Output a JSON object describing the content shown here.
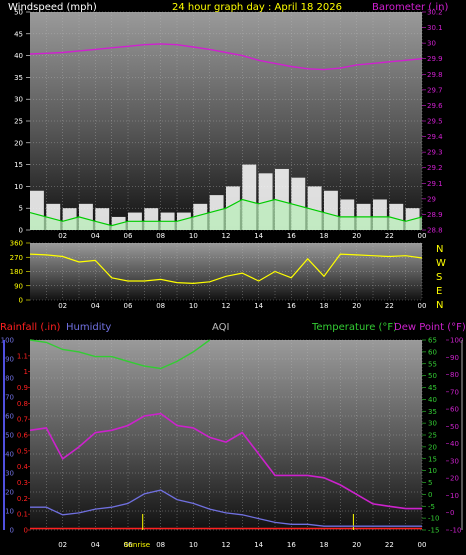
{
  "header": {
    "windspeed_label": "Windspeed (mph)",
    "title": "24 hour graph day : April 18 2026",
    "barometer_label": "Barometer (.in)"
  },
  "lower_header": {
    "rainfall_label": "Rainfall (.in)",
    "humidity_label": "Humidity",
    "aqi_label": "AQI",
    "temperature_label": "Temperature (°F)",
    "dewpoint_label": "Dew Point (°F)"
  },
  "compass": [
    "N",
    "W",
    "S",
    "E",
    "N"
  ],
  "sun": {
    "sunrise_label": "Sunrise"
  },
  "colors": {
    "wind_gust": "#ffffff",
    "wind_avg": "#00cc00",
    "barometer": "#d020d0",
    "direction": "#ffff00",
    "humidity": "#7070e0",
    "temperature": "#33cc33",
    "dewpoint": "#cc22cc",
    "rain": "#ff2020",
    "sun": "#ffff00"
  },
  "chart_data": [
    {
      "type": "area",
      "id": "wind_barometer",
      "x_ticks": [
        "02",
        "04",
        "06",
        "08",
        "10",
        "12",
        "14",
        "16",
        "18",
        "20",
        "22",
        "00"
      ],
      "y_left": {
        "label": "Windspeed (mph)",
        "range": [
          0,
          50
        ],
        "ticks": [
          "0",
          "5",
          "10",
          "15",
          "20",
          "25",
          "30",
          "35",
          "40",
          "45",
          "50"
        ]
      },
      "y_right": {
        "label": "Barometer (.in)",
        "range": [
          28.8,
          30.2
        ],
        "ticks": [
          "28.8",
          "28.9",
          "29",
          "29.1",
          "29.2",
          "29.3",
          "29.4",
          "29.5",
          "29.6",
          "29.7",
          "29.8",
          "29.9",
          "30",
          "30.1",
          "30.2"
        ]
      },
      "x_hours": [
        0,
        1,
        2,
        3,
        4,
        5,
        6,
        7,
        8,
        9,
        10,
        11,
        12,
        13,
        14,
        15,
        16,
        17,
        18,
        19,
        20,
        21,
        22,
        23,
        24
      ],
      "series": [
        {
          "name": "Windspeed (mph)",
          "role": "gust",
          "values": [
            9,
            6,
            5,
            6,
            5,
            3,
            4,
            5,
            4,
            4,
            6,
            8,
            10,
            15,
            13,
            14,
            12,
            10,
            9,
            7,
            6,
            7,
            6,
            5,
            6
          ]
        },
        {
          "name": "Windspeed (mph)",
          "role": "average",
          "values": [
            4,
            3,
            2,
            3,
            2,
            1,
            2,
            2,
            2,
            2,
            3,
            4,
            5,
            7,
            6,
            7,
            6,
            5,
            4,
            3,
            3,
            3,
            3,
            2,
            3
          ]
        },
        {
          "name": "Barometer (.in)",
          "values": [
            29.93,
            29.935,
            29.94,
            29.95,
            29.96,
            29.97,
            29.98,
            29.99,
            29.995,
            29.99,
            29.975,
            29.96,
            29.94,
            29.92,
            29.89,
            29.87,
            29.85,
            29.835,
            29.83,
            29.84,
            29.86,
            29.87,
            29.88,
            29.89,
            29.9
          ]
        }
      ],
      "grid": true
    },
    {
      "type": "line",
      "id": "wind_direction",
      "x_ticks": [
        "02",
        "04",
        "06",
        "08",
        "10",
        "12",
        "14",
        "16",
        "18",
        "20",
        "22",
        "00"
      ],
      "y": {
        "range": [
          0,
          360
        ],
        "ticks": [
          "0",
          "90",
          "180",
          "270",
          "360"
        ]
      },
      "x_hours": [
        0,
        1,
        2,
        3,
        4,
        5,
        6,
        7,
        8,
        9,
        10,
        11,
        12,
        13,
        14,
        15,
        16,
        17,
        18,
        19,
        20,
        21,
        22,
        23,
        24
      ],
      "values": [
        290,
        285,
        275,
        240,
        250,
        140,
        120,
        120,
        130,
        110,
        105,
        115,
        150,
        170,
        120,
        180,
        140,
        260,
        150,
        290,
        285,
        280,
        275,
        280,
        265
      ],
      "grid": true
    },
    {
      "type": "line",
      "id": "rain_humidity_temperature",
      "x_ticks": [
        "02",
        "04",
        "06",
        "08",
        "10",
        "12",
        "14",
        "16",
        "18",
        "20",
        "22",
        "00"
      ],
      "y_rain": {
        "label": "Rainfall (.in)",
        "range": [
          0,
          1.2
        ],
        "ticks": [
          "0",
          "0.1",
          "0.2",
          "0.3",
          "0.4",
          "0.5",
          "0.6",
          "0.7",
          "0.8",
          "0.9",
          "1",
          "1.1"
        ]
      },
      "y_humidity": {
        "label": "Humidity",
        "range": [
          0,
          100
        ],
        "ticks": [
          "0",
          "10",
          "20",
          "30",
          "40",
          "50",
          "60",
          "70",
          "80",
          "90",
          "100"
        ]
      },
      "y_temp": {
        "label": "Temperature (°F)",
        "range": [
          -15,
          65
        ],
        "ticks": [
          "-15",
          "-10",
          "-5",
          "0",
          "5",
          "10",
          "15",
          "20",
          "25",
          "30",
          "35",
          "40",
          "45",
          "50",
          "55",
          "60",
          "65"
        ]
      },
      "y_dew": {
        "label": "Dew Point (°F)",
        "range": [
          -10,
          100
        ],
        "ticks": [
          "-10",
          "0",
          "10",
          "20",
          "30",
          "40",
          "50",
          "60",
          "70",
          "80",
          "90",
          "100"
        ]
      },
      "x_hours": [
        0,
        1,
        2,
        3,
        4,
        5,
        6,
        7,
        8,
        9,
        10,
        11,
        12,
        13,
        14,
        15,
        16,
        17,
        18,
        19,
        20,
        21,
        22,
        23,
        24
      ],
      "series": [
        {
          "name": "Temperature (°F)",
          "values": [
            66,
            64,
            61,
            60,
            58,
            58,
            56,
            54,
            53,
            56,
            60,
            65,
            null,
            null,
            null,
            null,
            null,
            null,
            null,
            null,
            null,
            null,
            null,
            null,
            null
          ]
        },
        {
          "name": "Dew Point (°F)",
          "values": [
            27,
            28,
            15,
            20,
            26,
            27,
            29,
            33,
            34,
            29,
            28,
            24,
            22,
            26,
            17,
            8,
            8,
            8,
            7,
            4,
            0,
            -4,
            -5,
            -6,
            -6
          ]
        },
        {
          "name": "Humidity",
          "values": [
            12,
            12,
            8,
            9,
            11,
            12,
            14,
            19,
            21,
            16,
            14,
            11,
            9,
            8,
            6,
            4,
            3,
            3,
            2,
            2,
            2,
            2,
            2,
            2,
            2
          ]
        },
        {
          "name": "Rainfall (.in)",
          "values": [
            0,
            0,
            0,
            0,
            0,
            0,
            0,
            0,
            0,
            0,
            0,
            0,
            0,
            0,
            0,
            0,
            0,
            0,
            0,
            0,
            0,
            0,
            0,
            0,
            0
          ]
        }
      ],
      "sunrise_hour": 6.9,
      "sunset_hour": 19.8,
      "grid": true
    }
  ]
}
